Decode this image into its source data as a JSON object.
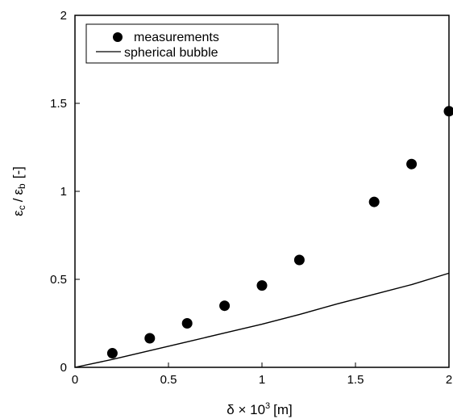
{
  "chart_data": {
    "type": "scatter",
    "xlabel": "δ × 10³ [m]",
    "xlabel_main": "δ",
    "xlabel_times": "×",
    "xlabel_base": "10",
    "xlabel_exp": "3",
    "xlabel_unit": "[m]",
    "ylabel": "εc / εb [-]",
    "ylabel_eps1": "ε",
    "ylabel_sub1": "c",
    "ylabel_slash": "/",
    "ylabel_eps2": "ε",
    "ylabel_sub2": "b",
    "ylabel_unit": "[-]",
    "xlim": [
      0,
      2
    ],
    "ylim": [
      0,
      2
    ],
    "xticks": [
      "0",
      "0.5",
      "1",
      "1.5",
      "2"
    ],
    "yticks": [
      "0",
      "0.5",
      "1",
      "1.5",
      "2"
    ],
    "legend_position": "top-left",
    "series": [
      {
        "name": "measurements",
        "type": "scatter",
        "marker": "filled-circle",
        "color": "#000000",
        "x": [
          0.2,
          0.4,
          0.6,
          0.8,
          1.0,
          1.2,
          1.6,
          1.8,
          2.0
        ],
        "y": [
          0.08,
          0.165,
          0.25,
          0.35,
          0.465,
          0.61,
          0.94,
          1.155,
          1.455
        ]
      },
      {
        "name": "spherical bubble",
        "type": "line",
        "color": "#000000",
        "x": [
          0,
          0.2,
          0.4,
          0.6,
          0.8,
          1.0,
          1.2,
          1.4,
          1.6,
          1.8,
          2.0
        ],
        "y": [
          0,
          0.045,
          0.095,
          0.145,
          0.195,
          0.245,
          0.3,
          0.36,
          0.415,
          0.47,
          0.535
        ]
      }
    ]
  }
}
